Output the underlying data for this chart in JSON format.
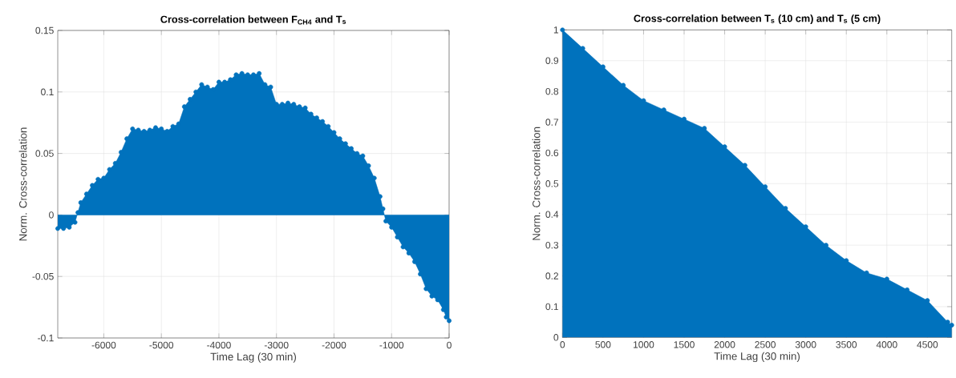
{
  "chart_data": [
    {
      "type": "area",
      "title": "Cross-correlation between F$_{CH4}$ and T$_{s}$",
      "xlabel": "Time Lag (30 min)",
      "ylabel": "Norm. Cross-correlation",
      "color": "#0072bd",
      "marker": "circle",
      "grid": true,
      "x": [
        -6800,
        -6700,
        -6600,
        -6500,
        -6450,
        -6400,
        -6300,
        -6200,
        -6100,
        -6000,
        -5900,
        -5800,
        -5700,
        -5600,
        -5500,
        -5400,
        -5300,
        -5200,
        -5100,
        -5000,
        -4900,
        -4800,
        -4700,
        -4600,
        -4500,
        -4400,
        -4300,
        -4200,
        -4100,
        -4000,
        -3900,
        -3800,
        -3700,
        -3600,
        -3500,
        -3400,
        -3300,
        -3200,
        -3100,
        -3000,
        -2900,
        -2800,
        -2700,
        -2600,
        -2500,
        -2400,
        -2300,
        -2200,
        -2100,
        -2000,
        -1900,
        -1800,
        -1700,
        -1600,
        -1500,
        -1400,
        -1300,
        -1200,
        -1150,
        -1100,
        -1000,
        -900,
        -800,
        -700,
        -600,
        -500,
        -400,
        -300,
        -200,
        -100,
        -50,
        0
      ],
      "values": [
        -0.011,
        -0.011,
        -0.01,
        -0.006,
        0.002,
        0.01,
        0.017,
        0.024,
        0.029,
        0.03,
        0.037,
        0.042,
        0.051,
        0.062,
        0.07,
        0.069,
        0.068,
        0.069,
        0.071,
        0.07,
        0.068,
        0.072,
        0.074,
        0.088,
        0.094,
        0.1,
        0.106,
        0.104,
        0.102,
        0.108,
        0.108,
        0.11,
        0.114,
        0.115,
        0.114,
        0.114,
        0.115,
        0.106,
        0.104,
        0.09,
        0.09,
        0.091,
        0.09,
        0.088,
        0.087,
        0.082,
        0.079,
        0.076,
        0.072,
        0.067,
        0.062,
        0.058,
        0.054,
        0.05,
        0.048,
        0.04,
        0.03,
        0.015,
        0.005,
        -0.005,
        -0.01,
        -0.018,
        -0.026,
        -0.031,
        -0.038,
        -0.048,
        -0.06,
        -0.066,
        -0.069,
        -0.077,
        -0.083,
        -0.086
      ],
      "xlim": [
        -6800,
        0
      ],
      "ylim": [
        -0.1,
        0.15
      ],
      "xticks": [
        -6000,
        -5000,
        -4000,
        -3000,
        -2000,
        -1000,
        0
      ],
      "yticks": [
        -0.1,
        -0.05,
        0,
        0.05,
        0.1,
        0.15
      ]
    },
    {
      "type": "area",
      "title": "Cross-correlation between T$_{s}$ (10 cm) and T$_{s}$ (5 cm)",
      "xlabel": "Time Lag (30 min)",
      "ylabel": "Norm. Cross-correlation",
      "color": "#0072bd",
      "marker": "circle",
      "grid": true,
      "x": [
        0,
        250,
        500,
        750,
        1000,
        1250,
        1500,
        1750,
        2000,
        2250,
        2500,
        2750,
        3000,
        3250,
        3500,
        3750,
        4000,
        4250,
        4500,
        4750,
        4800
      ],
      "values": [
        1.0,
        0.94,
        0.88,
        0.82,
        0.77,
        0.74,
        0.71,
        0.68,
        0.62,
        0.56,
        0.49,
        0.42,
        0.36,
        0.3,
        0.25,
        0.21,
        0.19,
        0.155,
        0.12,
        0.05,
        0.04
      ],
      "xlim": [
        0,
        4800
      ],
      "ylim": [
        0,
        1
      ],
      "xticks": [
        0,
        500,
        1000,
        1500,
        2000,
        2500,
        3000,
        3500,
        4000,
        4500
      ],
      "yticks": [
        0,
        0.1,
        0.2,
        0.3,
        0.4,
        0.5,
        0.6,
        0.7,
        0.8,
        0.9,
        1
      ]
    }
  ]
}
